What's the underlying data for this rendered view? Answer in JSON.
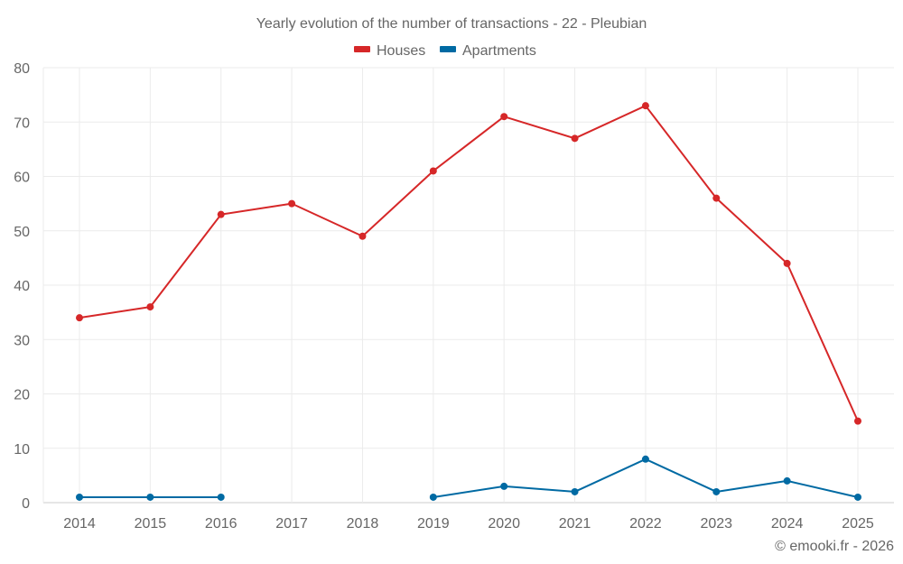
{
  "chart_data": {
    "type": "line",
    "title": "Yearly evolution of the number of transactions - 22 - Pleubian",
    "xlabel": "",
    "ylabel": "",
    "x": [
      "2014",
      "2015",
      "2016",
      "2017",
      "2018",
      "2019",
      "2020",
      "2021",
      "2022",
      "2023",
      "2024",
      "2025"
    ],
    "ylim": [
      0,
      80
    ],
    "yticks": [
      0,
      10,
      20,
      30,
      40,
      50,
      60,
      70,
      80
    ],
    "grid": true,
    "legend_position": "top-center",
    "series": [
      {
        "name": "Houses",
        "color": "#d62728",
        "values": [
          34,
          36,
          53,
          55,
          49,
          61,
          71,
          67,
          73,
          56,
          44,
          15
        ]
      },
      {
        "name": "Apartments",
        "color": "#006aa3",
        "values": [
          1,
          1,
          1,
          null,
          null,
          1,
          3,
          2,
          8,
          2,
          4,
          1
        ]
      }
    ],
    "credit": "© emooki.fr - 2026"
  }
}
